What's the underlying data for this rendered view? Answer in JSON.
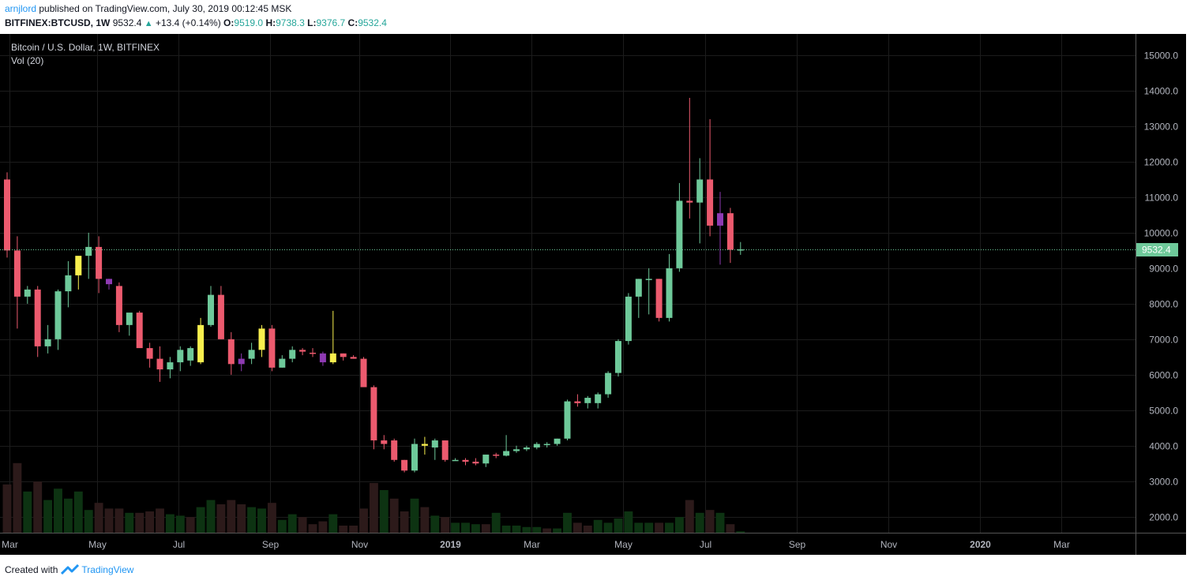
{
  "header": {
    "author": "arnjlord",
    "published_text": "published on TradingView.com, July 30, 2019 00:12:45 MSK",
    "symbol": "BITFINEX:BTCUSD, 1W",
    "last": "9532.4",
    "change": "+13.4 (+0.14%)",
    "o_label": "O:",
    "o": "9519.0",
    "h_label": "H:",
    "h": "9738.3",
    "l_label": "L:",
    "l": "9376.7",
    "c_label": "C:",
    "c": "9532.4"
  },
  "legend": {
    "title": "Bitcoin / U.S. Dollar, 1W, BITFINEX",
    "indicator": "Vol (20)"
  },
  "price_label": "9532.4",
  "footer": {
    "created_with": "Created with",
    "brand": "TradingView"
  },
  "colors": {
    "background": "#000000",
    "up": "#6ec99a",
    "down": "#ec5a6e",
    "yellow": "#f8ef4e",
    "purple": "#8e3ab2",
    "vol_up": "#0d3312",
    "vol_down": "#2c1a1a",
    "axis_text": "#b2b5be",
    "grid": "#1c1c1c",
    "price_tag": "#6ec99a"
  },
  "chart_data": {
    "type": "candlestick",
    "title": "Bitcoin / U.S. Dollar, 1W, BITFINEX",
    "y_ticks": [
      "2000.0",
      "3000.0",
      "4000.0",
      "5000.0",
      "6000.0",
      "7000.0",
      "8000.0",
      "9000.0",
      "10000.0",
      "11000.0",
      "12000.0",
      "13000.0",
      "14000.0",
      "15000.0"
    ],
    "ylim": [
      1550,
      15600
    ],
    "x_ticks": [
      "Mar",
      "May",
      "Jul",
      "Sep",
      "Nov",
      "2019",
      "Mar",
      "May",
      "Jul",
      "Sep",
      "Nov",
      "2020",
      "Mar"
    ],
    "x_tick_positions": [
      0.2,
      8.8,
      16.8,
      25.8,
      34.6,
      43.5,
      51.5,
      60.5,
      68.5,
      77.5,
      86.5,
      95.5,
      103.5
    ],
    "last_price": 9532.4,
    "candles": [
      {
        "o": 11500,
        "h": 11700,
        "l": 9300,
        "c": 9500
      },
      {
        "o": 9500,
        "h": 9900,
        "l": 7300,
        "c": 8200
      },
      {
        "o": 8200,
        "h": 8500,
        "l": 8000,
        "c": 8400
      },
      {
        "o": 8400,
        "h": 8500,
        "l": 6500,
        "c": 6800
      },
      {
        "o": 6800,
        "h": 7400,
        "l": 6600,
        "c": 7000
      },
      {
        "o": 7000,
        "h": 8400,
        "l": 6700,
        "c": 8350
      },
      {
        "o": 8350,
        "h": 9200,
        "l": 7900,
        "c": 8800
      },
      {
        "o": 8800,
        "h": 9300,
        "l": 8400,
        "c": 9350,
        "color": "yellow"
      },
      {
        "o": 9350,
        "h": 10000,
        "l": 8700,
        "c": 9600
      },
      {
        "o": 9600,
        "h": 9900,
        "l": 8300,
        "c": 8700
      },
      {
        "o": 8700,
        "h": 8700,
        "l": 8400,
        "c": 8550,
        "color": "purple"
      },
      {
        "o": 8500,
        "h": 8600,
        "l": 7200,
        "c": 7400
      },
      {
        "o": 7400,
        "h": 7700,
        "l": 7100,
        "c": 7750
      },
      {
        "o": 7750,
        "h": 7800,
        "l": 6800,
        "c": 6750
      },
      {
        "o": 6750,
        "h": 6900,
        "l": 6200,
        "c": 6450
      },
      {
        "o": 6450,
        "h": 6800,
        "l": 5800,
        "c": 6150
      },
      {
        "o": 6150,
        "h": 6500,
        "l": 5900,
        "c": 6350
      },
      {
        "o": 6350,
        "h": 6800,
        "l": 6100,
        "c": 6700
      },
      {
        "o": 6400,
        "h": 6800,
        "l": 6250,
        "c": 6750
      },
      {
        "o": 6350,
        "h": 7600,
        "l": 6300,
        "c": 7400,
        "color": "yellow"
      },
      {
        "o": 7400,
        "h": 8500,
        "l": 7350,
        "c": 8250
      },
      {
        "o": 8250,
        "h": 8500,
        "l": 7000,
        "c": 7000
      },
      {
        "o": 7000,
        "h": 7200,
        "l": 6000,
        "c": 6300
      },
      {
        "o": 6300,
        "h": 6600,
        "l": 6100,
        "c": 6450,
        "color": "purple"
      },
      {
        "o": 6450,
        "h": 6900,
        "l": 6300,
        "c": 6700
      },
      {
        "o": 6700,
        "h": 7400,
        "l": 6500,
        "c": 7300,
        "color": "yellow"
      },
      {
        "o": 7300,
        "h": 7400,
        "l": 6100,
        "c": 6200
      },
      {
        "o": 6200,
        "h": 6550,
        "l": 6200,
        "c": 6450
      },
      {
        "o": 6450,
        "h": 6800,
        "l": 6350,
        "c": 6700
      },
      {
        "o": 6700,
        "h": 6750,
        "l": 6550,
        "c": 6650
      },
      {
        "o": 6620,
        "h": 6750,
        "l": 6500,
        "c": 6600
      },
      {
        "o": 6600,
        "h": 6650,
        "l": 6250,
        "c": 6350,
        "color": "purple"
      },
      {
        "o": 6350,
        "h": 7800,
        "l": 6300,
        "c": 6600,
        "color": "yellow"
      },
      {
        "o": 6600,
        "h": 6600,
        "l": 6400,
        "c": 6500
      },
      {
        "o": 6500,
        "h": 6550,
        "l": 6450,
        "c": 6450
      },
      {
        "o": 6450,
        "h": 6500,
        "l": 5700,
        "c": 5650
      },
      {
        "o": 5650,
        "h": 5700,
        "l": 3900,
        "c": 4150
      },
      {
        "o": 4150,
        "h": 4300,
        "l": 3900,
        "c": 4050
      },
      {
        "o": 4150,
        "h": 4200,
        "l": 3550,
        "c": 3600
      },
      {
        "o": 3600,
        "h": 3600,
        "l": 3250,
        "c": 3300
      },
      {
        "o": 3300,
        "h": 4200,
        "l": 3250,
        "c": 4050
      },
      {
        "o": 4050,
        "h": 4250,
        "l": 3750,
        "c": 4000,
        "color": "yellow"
      },
      {
        "o": 3950,
        "h": 4200,
        "l": 3600,
        "c": 4150
      },
      {
        "o": 4150,
        "h": 4150,
        "l": 3550,
        "c": 3600
      },
      {
        "o": 3600,
        "h": 3650,
        "l": 3580,
        "c": 3600
      },
      {
        "o": 3600,
        "h": 3650,
        "l": 3450,
        "c": 3550
      },
      {
        "o": 3550,
        "h": 3650,
        "l": 3450,
        "c": 3500
      },
      {
        "o": 3500,
        "h": 3750,
        "l": 3400,
        "c": 3750
      },
      {
        "o": 3750,
        "h": 3800,
        "l": 3650,
        "c": 3720
      },
      {
        "o": 3720,
        "h": 4300,
        "l": 3700,
        "c": 3850
      },
      {
        "o": 3850,
        "h": 4000,
        "l": 3800,
        "c": 3900
      },
      {
        "o": 3900,
        "h": 4000,
        "l": 3850,
        "c": 3950
      },
      {
        "o": 3950,
        "h": 4100,
        "l": 3900,
        "c": 4050
      },
      {
        "o": 4050,
        "h": 4100,
        "l": 3950,
        "c": 4050
      },
      {
        "o": 4050,
        "h": 4200,
        "l": 4000,
        "c": 4200
      },
      {
        "o": 4200,
        "h": 5300,
        "l": 4150,
        "c": 5250
      },
      {
        "o": 5250,
        "h": 5450,
        "l": 5100,
        "c": 5200
      },
      {
        "o": 5200,
        "h": 5400,
        "l": 5050,
        "c": 5350
      },
      {
        "o": 5200,
        "h": 5500,
        "l": 5050,
        "c": 5450
      },
      {
        "o": 5450,
        "h": 6100,
        "l": 5350,
        "c": 6050
      },
      {
        "o": 6050,
        "h": 7000,
        "l": 5950,
        "c": 6950
      },
      {
        "o": 6950,
        "h": 8300,
        "l": 6850,
        "c": 8200
      },
      {
        "o": 8200,
        "h": 8700,
        "l": 7600,
        "c": 8700
      },
      {
        "o": 8700,
        "h": 9000,
        "l": 7700,
        "c": 8700
      },
      {
        "o": 8700,
        "h": 8700,
        "l": 7500,
        "c": 7600
      },
      {
        "o": 7600,
        "h": 9400,
        "l": 7500,
        "c": 9000
      },
      {
        "o": 9000,
        "h": 11400,
        "l": 8900,
        "c": 10900
      },
      {
        "o": 10900,
        "h": 13800,
        "l": 10400,
        "c": 10850
      },
      {
        "o": 10850,
        "h": 12100,
        "l": 9700,
        "c": 11500
      },
      {
        "o": 11500,
        "h": 13200,
        "l": 9900,
        "c": 10200
      },
      {
        "o": 10200,
        "h": 11150,
        "l": 9100,
        "c": 10550,
        "color": "purple"
      },
      {
        "o": 10550,
        "h": 10700,
        "l": 9150,
        "c": 9519
      },
      {
        "o": 9519,
        "h": 9738,
        "l": 9377,
        "c": 9532
      }
    ],
    "volume_scale_max": 10,
    "volumes": [
      {
        "v": 3.4,
        "up": false
      },
      {
        "v": 4.9,
        "up": false
      },
      {
        "v": 2.9,
        "up": true
      },
      {
        "v": 3.6,
        "up": false
      },
      {
        "v": 2.3,
        "up": true
      },
      {
        "v": 3.1,
        "up": true
      },
      {
        "v": 2.4,
        "up": true
      },
      {
        "v": 2.9,
        "up": true
      },
      {
        "v": 1.6,
        "up": true
      },
      {
        "v": 2.1,
        "up": false
      },
      {
        "v": 1.7,
        "up": false
      },
      {
        "v": 1.7,
        "up": false
      },
      {
        "v": 1.4,
        "up": true
      },
      {
        "v": 1.4,
        "up": false
      },
      {
        "v": 1.5,
        "up": false
      },
      {
        "v": 1.7,
        "up": false
      },
      {
        "v": 1.3,
        "up": true
      },
      {
        "v": 1.2,
        "up": true
      },
      {
        "v": 1.1,
        "up": false
      },
      {
        "v": 1.8,
        "up": true
      },
      {
        "v": 2.3,
        "up": true
      },
      {
        "v": 2.0,
        "up": false
      },
      {
        "v": 2.3,
        "up": false
      },
      {
        "v": 2.0,
        "up": false
      },
      {
        "v": 1.8,
        "up": true
      },
      {
        "v": 1.7,
        "up": true
      },
      {
        "v": 2.1,
        "up": false
      },
      {
        "v": 0.9,
        "up": true
      },
      {
        "v": 1.3,
        "up": true
      },
      {
        "v": 1.1,
        "up": false
      },
      {
        "v": 0.6,
        "up": false
      },
      {
        "v": 0.8,
        "up": false
      },
      {
        "v": 1.3,
        "up": true
      },
      {
        "v": 0.5,
        "up": false
      },
      {
        "v": 0.5,
        "up": false
      },
      {
        "v": 1.7,
        "up": false
      },
      {
        "v": 3.5,
        "up": false
      },
      {
        "v": 3.0,
        "up": true
      },
      {
        "v": 2.4,
        "up": false
      },
      {
        "v": 1.5,
        "up": false
      },
      {
        "v": 2.4,
        "up": true
      },
      {
        "v": 1.8,
        "up": false
      },
      {
        "v": 1.2,
        "up": true
      },
      {
        "v": 1.1,
        "up": false
      },
      {
        "v": 0.7,
        "up": true
      },
      {
        "v": 0.7,
        "up": true
      },
      {
        "v": 0.6,
        "up": true
      },
      {
        "v": 0.6,
        "up": false
      },
      {
        "v": 1.4,
        "up": true
      },
      {
        "v": 0.5,
        "up": true
      },
      {
        "v": 0.5,
        "up": true
      },
      {
        "v": 0.4,
        "up": true
      },
      {
        "v": 0.4,
        "up": true
      },
      {
        "v": 0.3,
        "up": false
      },
      {
        "v": 0.3,
        "up": true
      },
      {
        "v": 1.4,
        "up": true
      },
      {
        "v": 0.7,
        "up": false
      },
      {
        "v": 0.5,
        "up": false
      },
      {
        "v": 0.9,
        "up": true
      },
      {
        "v": 0.7,
        "up": true
      },
      {
        "v": 1.0,
        "up": true
      },
      {
        "v": 1.5,
        "up": true
      },
      {
        "v": 0.7,
        "up": true
      },
      {
        "v": 0.7,
        "up": true
      },
      {
        "v": 0.7,
        "up": false
      },
      {
        "v": 0.7,
        "up": true
      },
      {
        "v": 1.1,
        "up": true
      },
      {
        "v": 2.3,
        "up": false
      },
      {
        "v": 1.4,
        "up": true
      },
      {
        "v": 1.6,
        "up": false
      },
      {
        "v": 1.4,
        "up": true
      },
      {
        "v": 0.6,
        "up": false
      },
      {
        "v": 0.1,
        "up": true
      }
    ]
  }
}
